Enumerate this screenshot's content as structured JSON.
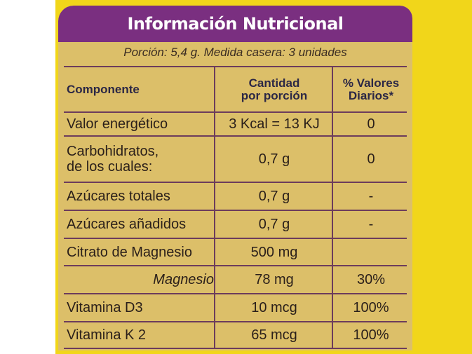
{
  "header": {
    "title": "Información Nutricional"
  },
  "serving": "Porción: 5,4 g. Medida casera: 3 unidades",
  "columns": {
    "component": "Componente",
    "amount_line1": "Cantidad",
    "amount_line2": "por porción",
    "dv_line1": "% Valores",
    "dv_line2": "Diarios*"
  },
  "rows": [
    {
      "name": "Valor energético",
      "amount": "3 Kcal = 13 KJ",
      "dv": "0"
    },
    {
      "name_line1": "Carbohidratos,",
      "name_line2": "de los cuales:",
      "amount": "0,7 g",
      "dv": "0"
    },
    {
      "name": "Azúcares totales",
      "amount": "0,7 g",
      "dv": "-"
    },
    {
      "name": "Azúcares añadidos",
      "amount": "0,7 g",
      "dv": "-"
    },
    {
      "name": "Citrato de Magnesio",
      "amount": "500 mg",
      "dv": ""
    },
    {
      "name": "Magnesio",
      "amount": "78 mg",
      "dv": "30%"
    },
    {
      "name": "Vitamina D3",
      "amount": "10 mcg",
      "dv": "100%"
    },
    {
      "name": "Vitamina K 2",
      "amount": "65 mcg",
      "dv": "100%"
    }
  ],
  "colors": {
    "header_bg": "#7a2f80",
    "label_bg": "#dcbf69",
    "frame": "#f1d61a",
    "rule": "#6c3c5c"
  }
}
